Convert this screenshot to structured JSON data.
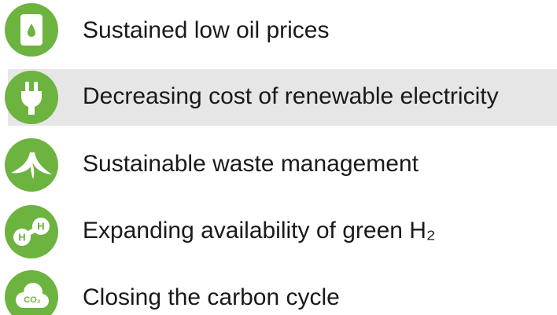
{
  "items": [
    {
      "text": "Sustained low oil prices"
    },
    {
      "text": "Decreasing cost of renewable electricity"
    },
    {
      "text": "Sustainable waste management"
    },
    {
      "text": "Expanding availability of green H₂",
      "icon_labels": [
        "H",
        "H"
      ]
    },
    {
      "text": "Closing the carbon cycle",
      "icon_label": "CO₂"
    }
  ]
}
